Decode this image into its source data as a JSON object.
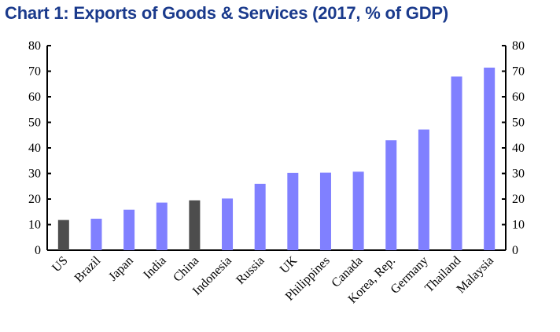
{
  "chart_data": {
    "type": "bar",
    "title": "Chart 1: Exports of Goods & Services (2017, % of GDP)",
    "categories": [
      "US",
      "Brazil",
      "Japan",
      "India",
      "China",
      "Indonesia",
      "Russia",
      "UK",
      "Philippines",
      "Canada",
      "Korea, Rep.",
      "Germany",
      "Thailand",
      "Malaysia"
    ],
    "values": [
      11.8,
      12.3,
      15.8,
      18.6,
      19.5,
      20.2,
      25.9,
      30.2,
      30.3,
      30.7,
      43.0,
      47.2,
      67.9,
      71.4
    ],
    "highlighted": [
      "US",
      "China"
    ],
    "ylim": [
      0,
      80
    ],
    "yticks": [
      0,
      10,
      20,
      30,
      40,
      50,
      60,
      70,
      80
    ],
    "secondary_yaxis": true,
    "grid": false,
    "colors": {
      "default": "#8080ff",
      "highlight": "#4d4d4d",
      "title": "#1a3a8c"
    }
  }
}
